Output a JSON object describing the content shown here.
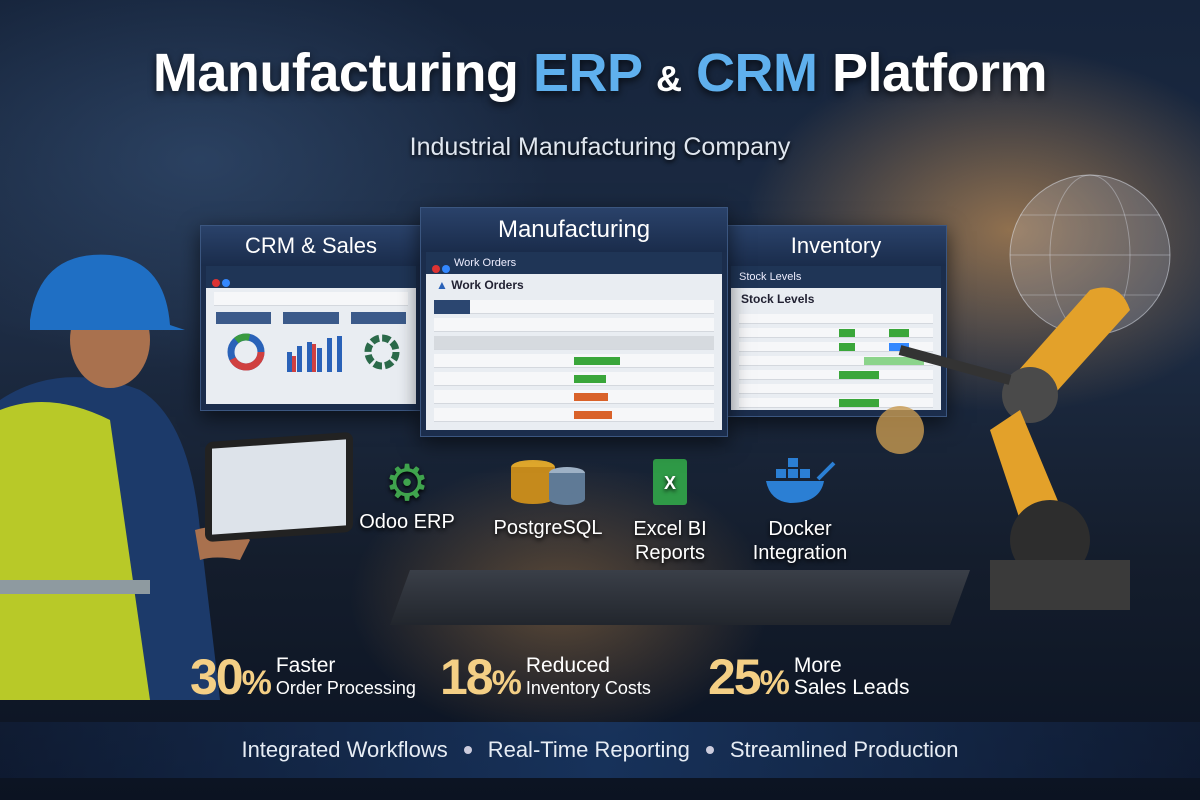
{
  "header": {
    "title_part1": "Manufacturing",
    "title_erp": "ERP",
    "title_amp": "&",
    "title_crm": "CRM",
    "title_part2": "Platform",
    "subtitle": "Industrial Manufacturing Company"
  },
  "panels": {
    "crm": {
      "title": "CRM & Sales"
    },
    "manufacturing": {
      "title": "Manufacturing",
      "window_title": "Work Orders",
      "heading": "Work Orders"
    },
    "inventory": {
      "title": "Inventory",
      "window_title": "Stock Levels",
      "heading": "Stock Levels"
    }
  },
  "tech": [
    {
      "label": "Odoo ERP",
      "icon": "gear-icon"
    },
    {
      "label": "PostgreSQL",
      "icon": "database-icon"
    },
    {
      "label": "Excel BI Reports",
      "icon": "spreadsheet-icon"
    },
    {
      "label": "Docker Integration",
      "icon": "docker-whale-icon"
    }
  ],
  "stats": [
    {
      "value": "30",
      "unit": "%",
      "line1": "Faster",
      "line2": "Order Processing"
    },
    {
      "value": "18",
      "unit": "%",
      "line1": "Reduced",
      "line2": "Inventory Costs"
    },
    {
      "value": "25",
      "unit": "%",
      "line1": "More",
      "line2": "Sales Leads"
    }
  ],
  "features": [
    "Integrated Workflows",
    "Real-Time Reporting",
    "Streamlined Production"
  ],
  "colors": {
    "accent_blue": "#5fb0ee",
    "stat_gold": "#f4cf85",
    "bar_green": "#3aa63a",
    "bar_orange": "#d9622a",
    "robot_orange": "#e3a12a",
    "vest_yellow": "#c8d62a",
    "helmet_blue": "#1f6fc4"
  }
}
